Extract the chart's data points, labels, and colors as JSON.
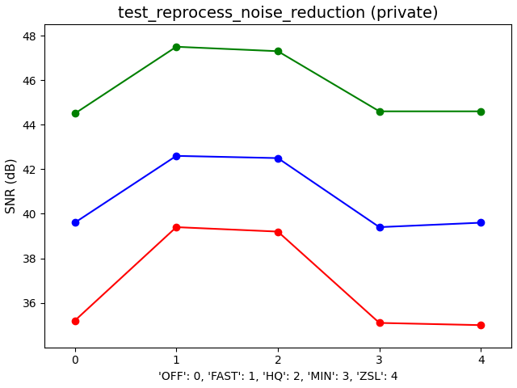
{
  "title": "test_reprocess_noise_reduction (private)",
  "xlabel": "'OFF': 0, 'FAST': 1, 'HQ': 2, 'MIN': 3, 'ZSL': 4",
  "ylabel": "SNR (dB)",
  "x": [
    0,
    1,
    2,
    3,
    4
  ],
  "green": [
    44.5,
    47.5,
    47.3,
    44.6,
    44.6
  ],
  "blue": [
    39.6,
    42.6,
    42.5,
    39.4,
    39.6
  ],
  "red": [
    35.2,
    39.4,
    39.2,
    35.1,
    35.0
  ],
  "green_color": "#008000",
  "blue_color": "#0000FF",
  "red_color": "#FF0000",
  "marker": "o",
  "markersize": 6,
  "linewidth": 1.5,
  "ylim": [
    34.0,
    48.5
  ],
  "yticks": [
    36,
    38,
    40,
    42,
    44,
    46,
    48
  ],
  "xticks": [
    0,
    1,
    2,
    3,
    4
  ],
  "title_fontsize": 14,
  "label_fontsize": 11,
  "tick_fontsize": 10,
  "xlabel_fontsize": 10,
  "background_color": "#ffffff"
}
